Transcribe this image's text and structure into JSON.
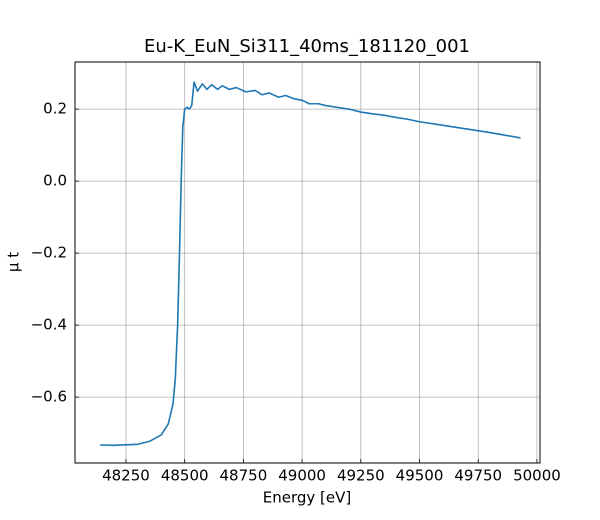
{
  "chart_data": {
    "type": "line",
    "title": "Eu-K_EuN_Si311_40ms_181120_001",
    "xlabel": "Energy [eV]",
    "ylabel": "μ t",
    "x": [
      48140,
      48200,
      48300,
      48350,
      48400,
      48430,
      48450,
      48460,
      48470,
      48478,
      48485,
      48492,
      48500,
      48510,
      48520,
      48530,
      48540,
      48555,
      48575,
      48595,
      48615,
      48640,
      48660,
      48690,
      48720,
      48760,
      48800,
      48830,
      48860,
      48900,
      48930,
      48970,
      49000,
      49030,
      49070,
      49100,
      49150,
      49200,
      49250,
      49300,
      49350,
      49400,
      49450,
      49500,
      49600,
      49700,
      49800,
      49930
    ],
    "series": [
      {
        "color": "#1f77b4",
        "values": [
          -0.733,
          -0.734,
          -0.731,
          -0.723,
          -0.705,
          -0.675,
          -0.62,
          -0.55,
          -0.4,
          -0.2,
          0.0,
          0.15,
          0.2,
          0.205,
          0.2,
          0.21,
          0.275,
          0.25,
          0.27,
          0.255,
          0.268,
          0.255,
          0.265,
          0.255,
          0.26,
          0.248,
          0.252,
          0.24,
          0.245,
          0.233,
          0.238,
          0.228,
          0.225,
          0.215,
          0.215,
          0.21,
          0.205,
          0.2,
          0.192,
          0.187,
          0.183,
          0.177,
          0.172,
          0.165,
          0.155,
          0.145,
          0.135,
          0.12
        ]
      }
    ],
    "xlim": [
      48033,
      50013
    ],
    "ylim": [
      -0.783,
      0.331
    ],
    "xticks": [
      48250,
      48500,
      48750,
      49000,
      49250,
      49500,
      49750,
      50000
    ],
    "yticks": [
      {
        "value": -0.6,
        "label": "−0.6"
      },
      {
        "value": -0.4,
        "label": "−0.4"
      },
      {
        "value": -0.2,
        "label": "−0.2"
      },
      {
        "value": 0,
        "label": "0.0"
      },
      0.2
    ],
    "grid": true
  }
}
